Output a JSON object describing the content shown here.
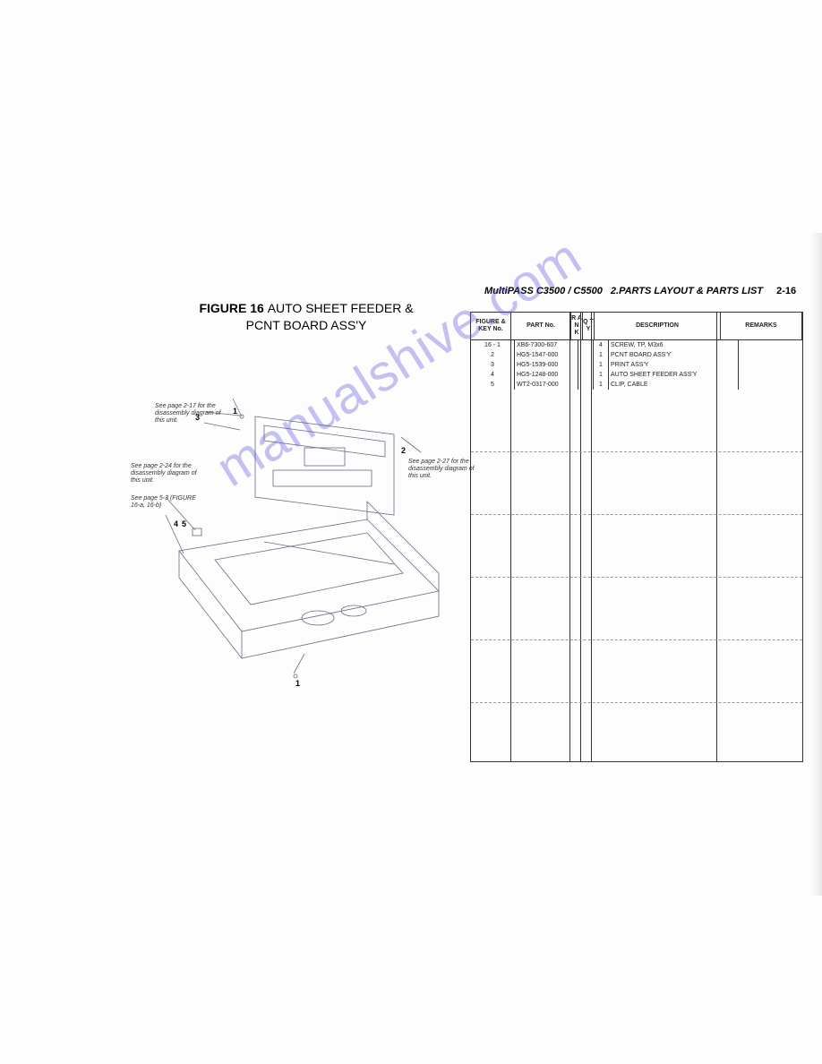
{
  "header": {
    "model": "MultiPASS C3500 / C5500",
    "section": "2.PARTS LAYOUT & PARTS LIST",
    "page": "2-16"
  },
  "figure": {
    "label": "FIGURE 16",
    "title_line1": "AUTO SHEET FEEDER &",
    "title_line2": "PCNT BOARD ASS'Y"
  },
  "notes": {
    "n1": "See page 2-17 for the disassembly diagram of this unit.",
    "n2": "See page 2-27 for the disassembly diagram of this unit.",
    "n3a": "See page 2-24 for the disassembly diagram of this unit.",
    "n3b": "See page 5-3 (FIGURE 16-a, 16-b)"
  },
  "callouts": {
    "c1": "1",
    "c2": "2",
    "c3": "3",
    "c4": "4",
    "c5": "5",
    "c1b": "1"
  },
  "table": {
    "columns": {
      "key": "FIGURE & KEY No.",
      "part": "PART No.",
      "rank": "R A N K",
      "qty": "Q T Y",
      "desc": "DESCRIPTION",
      "remarks": "REMARKS"
    },
    "rows": [
      {
        "key": "16 - 1",
        "part": "XB6-7300-607",
        "rank": "",
        "qty": "4",
        "desc": "SCREW, TP, M3x6",
        "remarks": ""
      },
      {
        "key": "2",
        "part": "HG5-1547-000",
        "rank": "",
        "qty": "1",
        "desc": "PCNT BOARD ASS'Y",
        "remarks": ""
      },
      {
        "key": "3",
        "part": "HG5-1539-000",
        "rank": "",
        "qty": "1",
        "desc": "PRINT ASS'Y",
        "remarks": ""
      },
      {
        "key": "4",
        "part": "HG5-1248-000",
        "rank": "",
        "qty": "1",
        "desc": "AUTO SHEET FEEDER ASS'Y",
        "remarks": ""
      },
      {
        "key": "5",
        "part": "WT2-0317-000",
        "rank": "",
        "qty": "1",
        "desc": "CLIP, CABLE",
        "remarks": ""
      }
    ],
    "dash_row_positions": [
      155,
      225,
      295,
      365,
      435
    ],
    "border_color": "#333333",
    "dash_color": "#999999"
  },
  "watermark": {
    "text": "manualshive.com"
  },
  "colors": {
    "background": "#ffffff",
    "text": "#222222",
    "watermark": "rgba(90,80,220,0.35)",
    "diagram_stroke": "#5a5a7a"
  }
}
